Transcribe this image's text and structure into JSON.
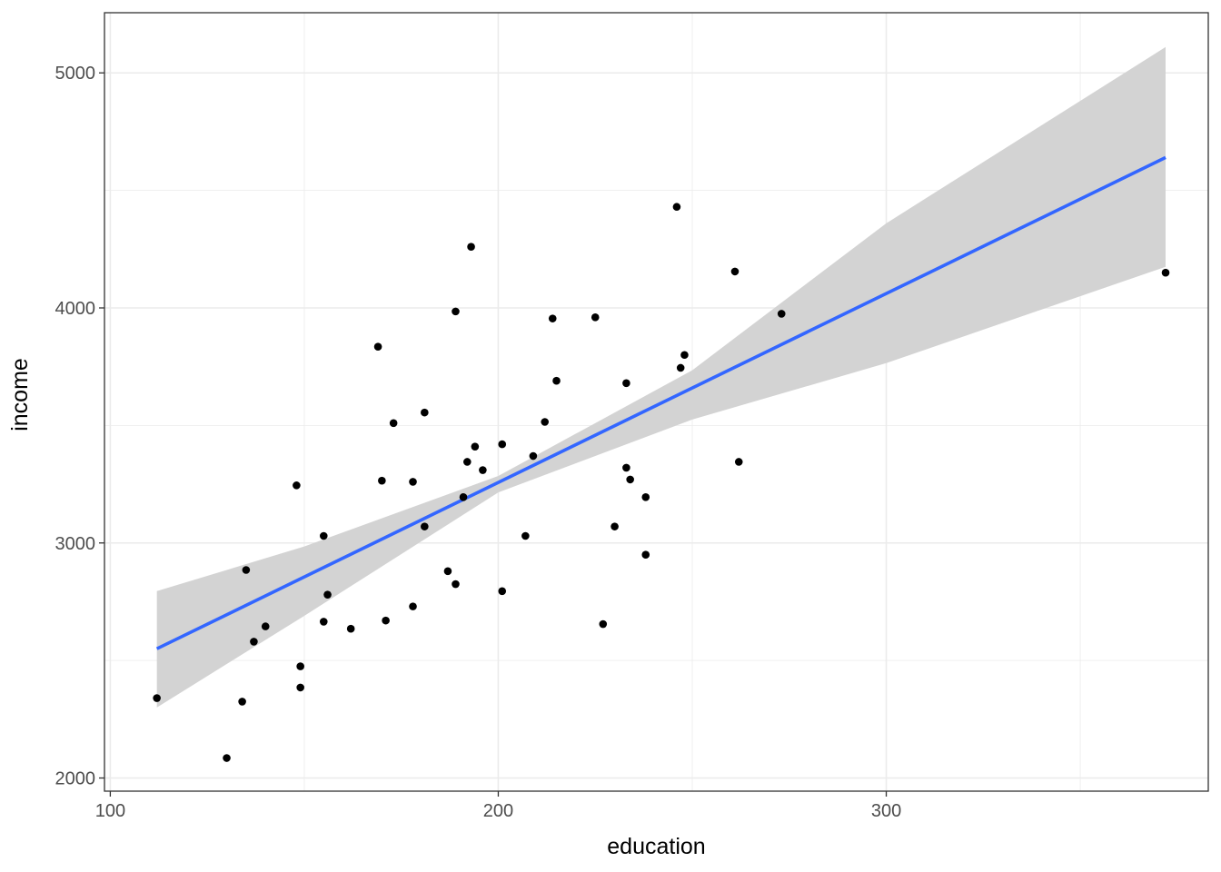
{
  "chart_data": {
    "type": "scatter",
    "title": "",
    "xlabel": "education",
    "ylabel": "income",
    "xlim": [
      98.5,
      383.0
    ],
    "ylim": [
      1944,
      5256
    ],
    "x_ticks": [
      100,
      200,
      300
    ],
    "x_tick_labels": [
      "100",
      "200",
      "300"
    ],
    "y_ticks": [
      2000,
      3000,
      4000,
      5000
    ],
    "y_tick_labels": [
      "2000",
      "3000",
      "4000",
      "5000"
    ],
    "grid": true,
    "points": [
      {
        "x": 112,
        "y": 2340
      },
      {
        "x": 130,
        "y": 2085
      },
      {
        "x": 134,
        "y": 2325
      },
      {
        "x": 135,
        "y": 2885
      },
      {
        "x": 137,
        "y": 2580
      },
      {
        "x": 140,
        "y": 2645
      },
      {
        "x": 148,
        "y": 3245
      },
      {
        "x": 149,
        "y": 2475
      },
      {
        "x": 149,
        "y": 2385
      },
      {
        "x": 155,
        "y": 3030
      },
      {
        "x": 155,
        "y": 2665
      },
      {
        "x": 156,
        "y": 2780
      },
      {
        "x": 162,
        "y": 2635
      },
      {
        "x": 169,
        "y": 3835
      },
      {
        "x": 170,
        "y": 3265
      },
      {
        "x": 171,
        "y": 2670
      },
      {
        "x": 173,
        "y": 3510
      },
      {
        "x": 178,
        "y": 3260
      },
      {
        "x": 178,
        "y": 2730
      },
      {
        "x": 181,
        "y": 3555
      },
      {
        "x": 181,
        "y": 3070
      },
      {
        "x": 187,
        "y": 2880
      },
      {
        "x": 189,
        "y": 3985
      },
      {
        "x": 189,
        "y": 2825
      },
      {
        "x": 191,
        "y": 3195
      },
      {
        "x": 192,
        "y": 3345
      },
      {
        "x": 193,
        "y": 4260
      },
      {
        "x": 194,
        "y": 3410
      },
      {
        "x": 196,
        "y": 3310
      },
      {
        "x": 201,
        "y": 3420
      },
      {
        "x": 201,
        "y": 2795
      },
      {
        "x": 207,
        "y": 3030
      },
      {
        "x": 209,
        "y": 3370
      },
      {
        "x": 212,
        "y": 3515
      },
      {
        "x": 214,
        "y": 3955
      },
      {
        "x": 215,
        "y": 3690
      },
      {
        "x": 225,
        "y": 3960
      },
      {
        "x": 227,
        "y": 2655
      },
      {
        "x": 230,
        "y": 3070
      },
      {
        "x": 233,
        "y": 3680
      },
      {
        "x": 233,
        "y": 3320
      },
      {
        "x": 234,
        "y": 3270
      },
      {
        "x": 238,
        "y": 3195
      },
      {
        "x": 238,
        "y": 2950
      },
      {
        "x": 246,
        "y": 4430
      },
      {
        "x": 247,
        "y": 3745
      },
      {
        "x": 248,
        "y": 3800
      },
      {
        "x": 261,
        "y": 4155
      },
      {
        "x": 262,
        "y": 3345
      },
      {
        "x": 273,
        "y": 3975
      },
      {
        "x": 372,
        "y": 4150
      }
    ],
    "fit_line": {
      "x": [
        112,
        372
      ],
      "y": [
        2550,
        4640
      ],
      "color": "#3366ff"
    },
    "confidence_band": {
      "x": [
        112,
        150,
        200,
        250,
        300,
        372
      ],
      "upper": [
        2795,
        2985,
        3285,
        3735,
        4360,
        5110
      ],
      "lower": [
        2300,
        2690,
        3215,
        3525,
        3765,
        4175
      ],
      "color": "#d3d3d3"
    }
  }
}
